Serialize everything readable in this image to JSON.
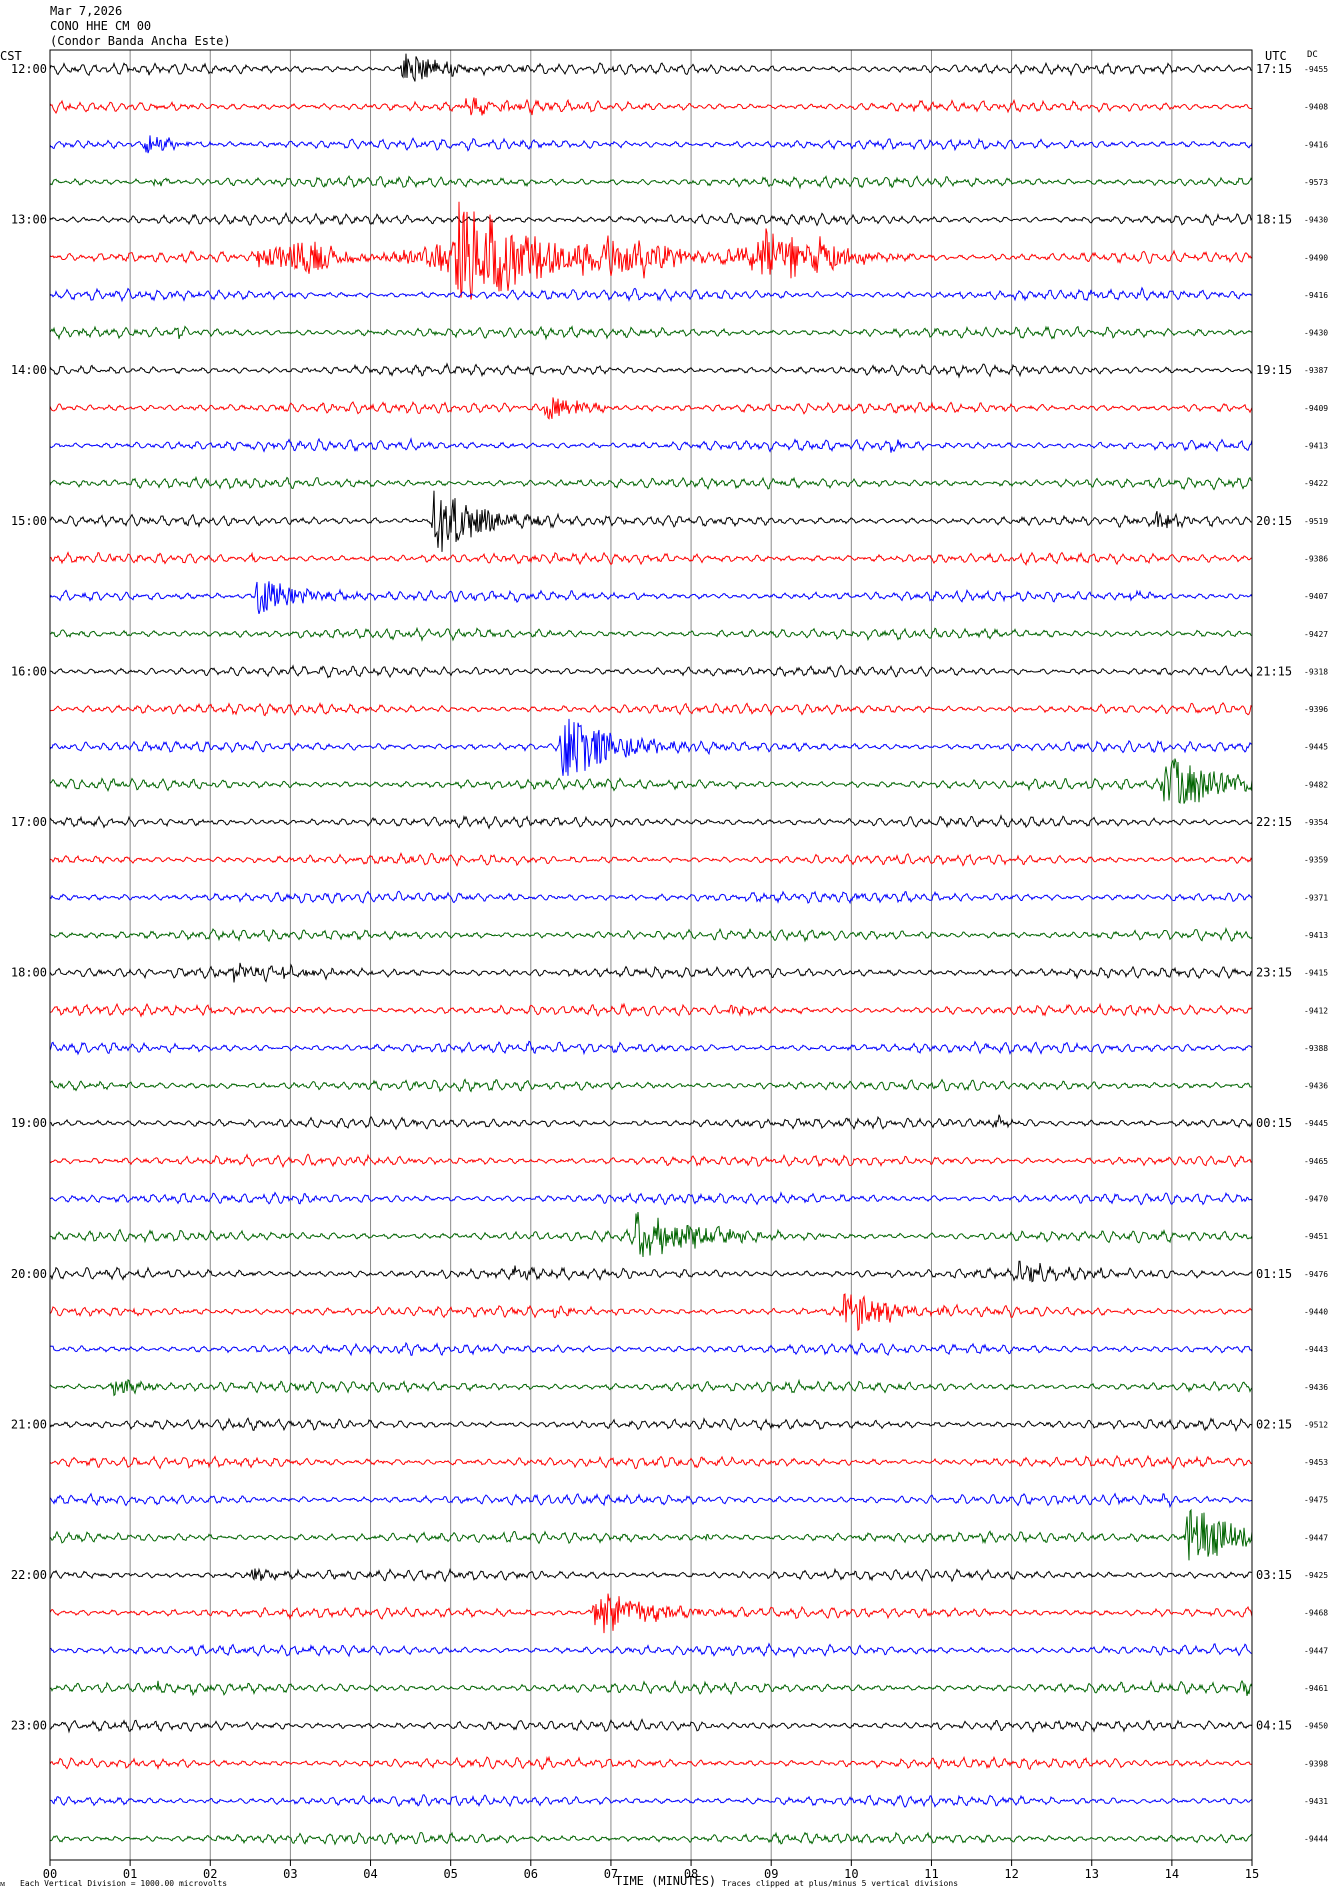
{
  "header": {
    "date": "Mar 7,2026",
    "station": "CONO HHE CM 00",
    "site": "(Condor Banda Ancha Este)"
  },
  "axis": {
    "left_label": "CST",
    "right_label": "UTC",
    "dc_label": "DC",
    "xlabel": "TIME (MINUTES)"
  },
  "footer": {
    "scale_note": "Each Vertical Division = 1000.00 microvolts",
    "clip_note": "Traces clipped at plus/minus 5 vertical divisions"
  },
  "chart_data": {
    "type": "line",
    "title": "",
    "xlabel": "TIME (MINUTES)",
    "xlim": [
      0,
      15
    ],
    "x_ticks": [
      "00",
      "01",
      "02",
      "03",
      "04",
      "05",
      "06",
      "07",
      "08",
      "09",
      "10",
      "11",
      "12",
      "13",
      "14",
      "15"
    ],
    "trace_colors": [
      "#000000",
      "#ff0000",
      "#0000ff",
      "#006400"
    ],
    "hour_labels_left": [
      "12:00",
      "13:00",
      "14:00",
      "15:00",
      "16:00",
      "17:00",
      "18:00",
      "19:00",
      "20:00",
      "21:00",
      "22:00",
      "23:00"
    ],
    "hour_labels_right": [
      "17:15",
      "18:15",
      "19:15",
      "20:15",
      "21:15",
      "22:15",
      "23:15",
      "00:15",
      "01:15",
      "02:15",
      "03:15",
      "04:15"
    ],
    "dc_offsets": [
      "-9455",
      "-9408",
      "-9416",
      "-9573",
      "-9430",
      "-9490",
      "-9416",
      "-9430",
      "-9387",
      "-9409",
      "-9413",
      "-9422",
      "-9519",
      "-9386",
      "-9407",
      "-9427",
      "-9318",
      "-9396",
      "-9445",
      "-9482",
      "-9354",
      "-9359",
      "-9371",
      "-9413",
      "-9415",
      "-9412",
      "-9388",
      "-9436",
      "-9445",
      "-9465",
      "-9470",
      "-9451",
      "-9476",
      "-9440",
      "-9443",
      "-9436",
      "-9512",
      "-9453",
      "-9475",
      "-9447",
      "-9425",
      "-9468",
      "-9447",
      "-9461",
      "-9450",
      "-9398",
      "-9431",
      "-9444"
    ],
    "events": [
      {
        "row": 0,
        "minute": 4.4,
        "amp": 2.2,
        "dur": 0.9
      },
      {
        "row": 1,
        "minute": 5.2,
        "amp": 1.0,
        "dur": 1.2
      },
      {
        "row": 1,
        "minute": 10.8,
        "amp": 0.7,
        "dur": 0.2
      },
      {
        "row": 2,
        "minute": 1.2,
        "amp": 1.3,
        "dur": 0.5
      },
      {
        "row": 3,
        "minute": 1.3,
        "amp": 0.6,
        "dur": 0.2
      },
      {
        "row": 5,
        "minute": 2.6,
        "amp": 2.0,
        "dur": 7.0
      },
      {
        "row": 5,
        "minute": 5.1,
        "amp": 7.0,
        "dur": 1.5
      },
      {
        "row": 5,
        "minute": 8.9,
        "amp": 4.0,
        "dur": 0.7
      },
      {
        "row": 6,
        "minute": 12.0,
        "amp": 0.6,
        "dur": 0.2
      },
      {
        "row": 6,
        "minute": 13.6,
        "amp": 0.5,
        "dur": 0.2
      },
      {
        "row": 7,
        "minute": 1.6,
        "amp": 0.6,
        "dur": 0.2
      },
      {
        "row": 9,
        "minute": 6.2,
        "amp": 1.8,
        "dur": 0.7
      },
      {
        "row": 10,
        "minute": 4.5,
        "amp": 0.5,
        "dur": 0.2
      },
      {
        "row": 10,
        "minute": 10.5,
        "amp": 0.6,
        "dur": 0.3
      },
      {
        "row": 12,
        "minute": 4.8,
        "amp": 4.5,
        "dur": 0.9
      },
      {
        "row": 12,
        "minute": 13.8,
        "amp": 1.1,
        "dur": 0.6
      },
      {
        "row": 13,
        "minute": 2.5,
        "amp": 0.4,
        "dur": 0.2
      },
      {
        "row": 14,
        "minute": 2.6,
        "amp": 2.6,
        "dur": 0.8
      },
      {
        "row": 14,
        "minute": 13.5,
        "amp": 0.8,
        "dur": 0.3
      },
      {
        "row": 18,
        "minute": 6.4,
        "amp": 4.8,
        "dur": 1.0
      },
      {
        "row": 19,
        "minute": 13.9,
        "amp": 3.6,
        "dur": 1.5
      },
      {
        "row": 24,
        "minute": 2.3,
        "amp": 1.0,
        "dur": 1.6
      },
      {
        "row": 25,
        "minute": 8.5,
        "amp": 0.6,
        "dur": 0.6
      },
      {
        "row": 28,
        "minute": 11.8,
        "amp": 1.0,
        "dur": 0.3
      },
      {
        "row": 31,
        "minute": 7.3,
        "amp": 2.8,
        "dur": 1.3
      },
      {
        "row": 32,
        "minute": 5.8,
        "amp": 0.7,
        "dur": 0.4
      },
      {
        "row": 32,
        "minute": 12.1,
        "amp": 1.3,
        "dur": 1.0
      },
      {
        "row": 33,
        "minute": 1.0,
        "amp": 0.5,
        "dur": 0.3
      },
      {
        "row": 33,
        "minute": 6.3,
        "amp": 0.6,
        "dur": 0.3
      },
      {
        "row": 33,
        "minute": 9.9,
        "amp": 2.9,
        "dur": 0.8
      },
      {
        "row": 35,
        "minute": 0.8,
        "amp": 1.4,
        "dur": 0.5
      },
      {
        "row": 38,
        "minute": 13.9,
        "amp": 0.6,
        "dur": 0.2
      },
      {
        "row": 39,
        "minute": 8.2,
        "amp": 0.6,
        "dur": 0.2
      },
      {
        "row": 39,
        "minute": 14.2,
        "amp": 4.2,
        "dur": 1.0
      },
      {
        "row": 40,
        "minute": 2.5,
        "amp": 1.0,
        "dur": 0.5
      },
      {
        "row": 41,
        "minute": 6.8,
        "amp": 3.2,
        "dur": 1.0
      },
      {
        "row": 43,
        "minute": 1.2,
        "amp": 0.5,
        "dur": 1.0
      },
      {
        "row": 43,
        "minute": 14.9,
        "amp": 1.0,
        "dur": 0.3
      }
    ]
  }
}
